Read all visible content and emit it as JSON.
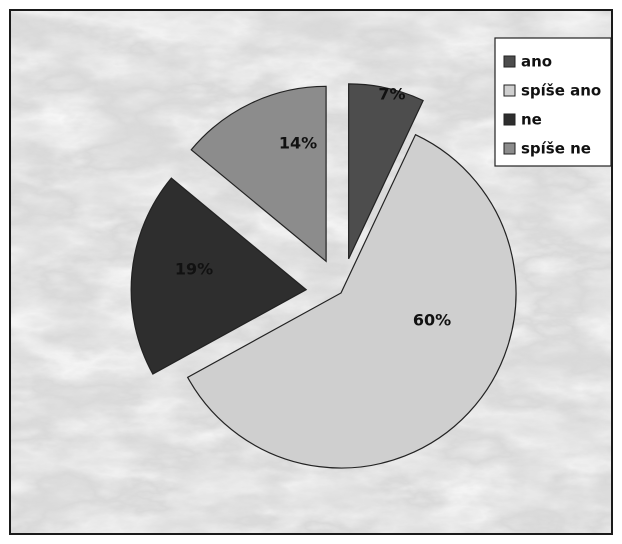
{
  "chart_data": {
    "type": "pie",
    "title": "",
    "exploded": true,
    "slices": [
      {
        "name": "ano",
        "value": 7,
        "label": "7%",
        "color": "#4d4d4d"
      },
      {
        "name": "spíše ano",
        "value": 60,
        "label": "60%",
        "color": "#cfcfcf"
      },
      {
        "name": "ne",
        "value": 19,
        "label": "19%",
        "color": "#2e2e2e"
      },
      {
        "name": "spíše ne",
        "value": 14,
        "label": "14%",
        "color": "#8c8c8c"
      }
    ],
    "legend": {
      "placement": "top-right",
      "items": [
        "ano",
        "spíše ano",
        "ne",
        "spíše ne"
      ]
    },
    "background": "marble texture"
  }
}
